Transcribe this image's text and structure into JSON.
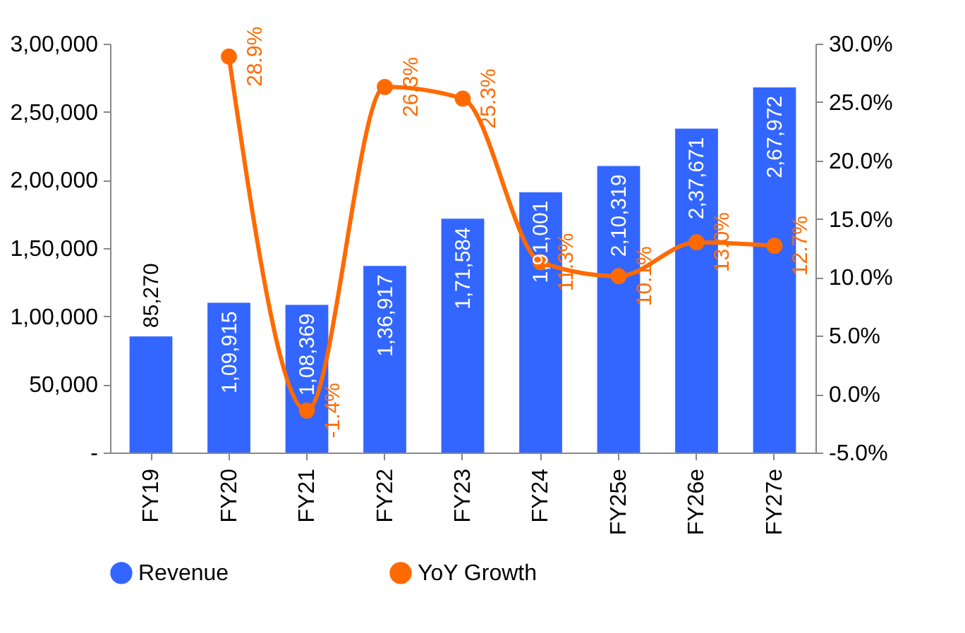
{
  "chart_data": {
    "type": "bar",
    "categories": [
      "FY19",
      "FY20",
      "FY21",
      "FY22",
      "FY23",
      "FY24",
      "FY25e",
      "FY26e",
      "FY27e"
    ],
    "series": [
      {
        "name": "Revenue",
        "color": "#3366ff",
        "values": [
          85270,
          109915,
          108369,
          136917,
          171584,
          191001,
          210319,
          237671,
          267972
        ],
        "value_labels": [
          "85,270",
          "1,09,915",
          "1,08,369",
          "1,36,917",
          "1,71,584",
          "1,91,001",
          "2,10,319",
          "2,37,671",
          "2,67,972"
        ]
      },
      {
        "name": "YoY Growth",
        "type": "line",
        "axis": "y2",
        "color": "#ff6a00",
        "marker": "circle",
        "values": [
          null,
          28.9,
          -1.4,
          26.3,
          25.3,
          11.3,
          10.1,
          13.0,
          12.7
        ],
        "value_labels": [
          null,
          "28.9%",
          "-1.4%",
          "26.3%",
          "25.3%",
          "11.3%",
          "10.1%",
          "13.0%",
          "12.7%"
        ]
      }
    ],
    "ylim": [
      0,
      300000
    ],
    "yticks": [
      {
        "value": 0,
        "label": "-"
      },
      {
        "value": 50000,
        "label": "50,000"
      },
      {
        "value": 100000,
        "label": "1,00,000"
      },
      {
        "value": 150000,
        "label": "1,50,000"
      },
      {
        "value": 200000,
        "label": "2,00,000"
      },
      {
        "value": 250000,
        "label": "2,50,000"
      },
      {
        "value": 300000,
        "label": "3,00,000"
      }
    ],
    "y2lim": [
      -5,
      30
    ],
    "y2ticks": [
      {
        "value": -5,
        "label": "-5.0%"
      },
      {
        "value": 0,
        "label": "0.0%"
      },
      {
        "value": 5,
        "label": "5.0%"
      },
      {
        "value": 10,
        "label": "10.0%"
      },
      {
        "value": 15,
        "label": "15.0%"
      },
      {
        "value": 20,
        "label": "20.0%"
      },
      {
        "value": 25,
        "label": "25.0%"
      },
      {
        "value": 30,
        "label": "30.0%"
      }
    ],
    "legend": "bottom",
    "grid": false
  }
}
